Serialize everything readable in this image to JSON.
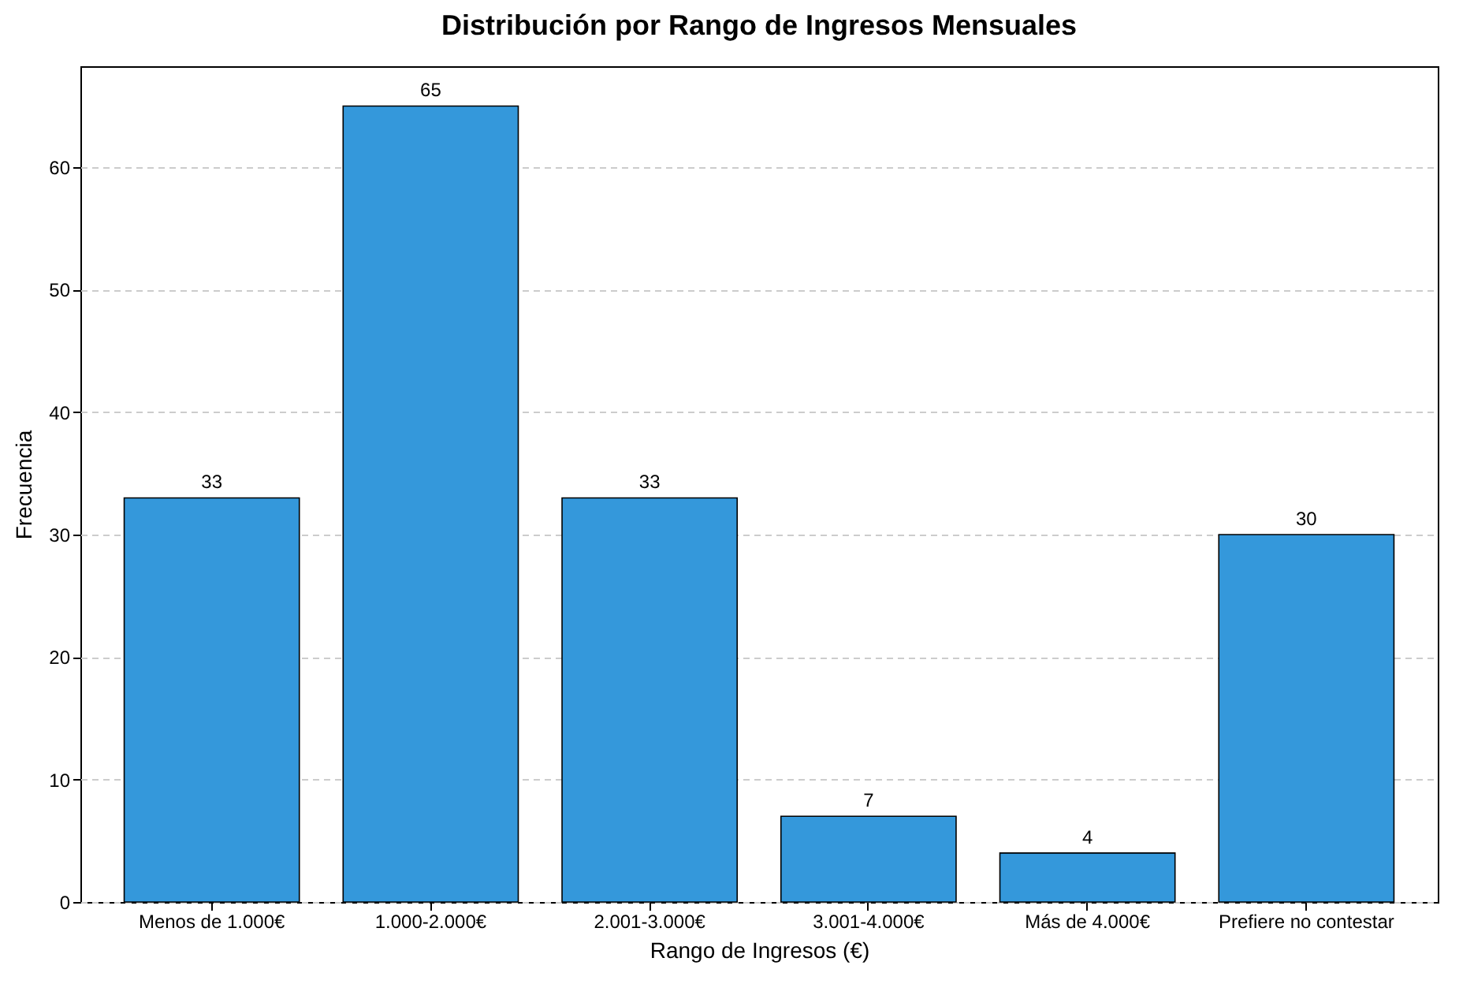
{
  "chart_data": {
    "type": "bar",
    "title": "Distribución por Rango de Ingresos Mensuales",
    "xlabel": "Rango de Ingresos (€)",
    "ylabel": "Frecuencia",
    "categories": [
      "Menos de 1.000€",
      "1.000-2.000€",
      "2.001-3.000€",
      "3.001-4.000€",
      "Más de 4.000€",
      "Prefiere no contestar"
    ],
    "values": [
      33,
      65,
      33,
      7,
      4,
      30
    ],
    "color": "#3498db",
    "ylim": [
      0,
      68.25
    ],
    "yticks": [
      0,
      10,
      20,
      30,
      40,
      50,
      60
    ],
    "grid": "y",
    "data_labels": true
  }
}
